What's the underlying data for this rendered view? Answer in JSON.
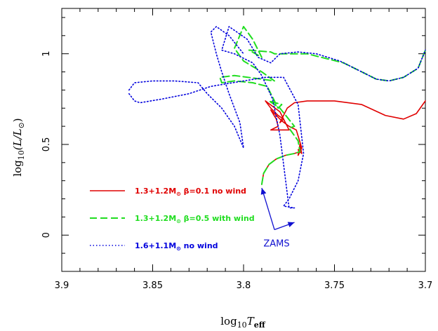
{
  "chart_data": {
    "type": "line",
    "title": "",
    "xlabel": "log₁₀T_eff",
    "ylabel": "log₁₀(L/L⊙)",
    "xlim": [
      3.9,
      3.7
    ],
    "ylim": [
      -0.2,
      1.25
    ],
    "x_inverted": true,
    "x_ticks": [
      3.9,
      3.85,
      3.8,
      3.75,
      3.7
    ],
    "x_tick_labels": [
      "3.9",
      "3.85",
      "3.8",
      "3.75",
      "3.7"
    ],
    "y_ticks": [
      0,
      0.5,
      1
    ],
    "y_tick_labels": [
      "0",
      "0.5",
      "1"
    ],
    "grid": false,
    "legend_position": "lower-left",
    "series": [
      {
        "name": "1.3+1.2M⊙ β=0.1 no wind",
        "color": "#e00000",
        "dash": "solid",
        "points": [
          [
            3.79,
            0.28
          ],
          [
            3.789,
            0.34
          ],
          [
            3.786,
            0.39
          ],
          [
            3.782,
            0.42
          ],
          [
            3.777,
            0.44
          ],
          [
            3.772,
            0.45
          ],
          [
            3.769,
            0.46
          ],
          [
            3.768,
            0.48
          ],
          [
            3.77,
            0.47
          ],
          [
            3.768,
            0.45
          ],
          [
            3.769,
            0.5
          ],
          [
            3.77,
            0.44
          ],
          [
            3.768,
            0.48
          ],
          [
            3.771,
            0.58
          ],
          [
            3.775,
            0.6
          ],
          [
            3.779,
            0.63
          ],
          [
            3.785,
            0.69
          ],
          [
            3.782,
            0.64
          ],
          [
            3.781,
            0.6
          ],
          [
            3.785,
            0.58
          ],
          [
            3.775,
            0.58
          ],
          [
            3.78,
            0.68
          ],
          [
            3.788,
            0.74
          ],
          [
            3.785,
            0.7
          ],
          [
            3.781,
            0.66
          ],
          [
            3.778,
            0.64
          ],
          [
            3.78,
            0.62
          ],
          [
            3.776,
            0.7
          ],
          [
            3.772,
            0.73
          ],
          [
            3.765,
            0.74
          ],
          [
            3.75,
            0.74
          ],
          [
            3.735,
            0.72
          ],
          [
            3.722,
            0.66
          ],
          [
            3.712,
            0.64
          ],
          [
            3.705,
            0.67
          ],
          [
            3.7,
            0.74
          ]
        ]
      },
      {
        "name": "1.3+1.2M⊙ β=0.5 with wind",
        "color": "#20dd20",
        "dash": "dashed",
        "points": [
          [
            3.79,
            0.28
          ],
          [
            3.789,
            0.34
          ],
          [
            3.786,
            0.39
          ],
          [
            3.782,
            0.42
          ],
          [
            3.777,
            0.44
          ],
          [
            3.772,
            0.45
          ],
          [
            3.769,
            0.46
          ],
          [
            3.77,
            0.52
          ],
          [
            3.775,
            0.59
          ],
          [
            3.772,
            0.6
          ],
          [
            3.78,
            0.7
          ],
          [
            3.786,
            0.74
          ],
          [
            3.779,
            0.72
          ],
          [
            3.781,
            0.7
          ],
          [
            3.785,
            0.78
          ],
          [
            3.787,
            0.82
          ],
          [
            3.795,
            0.84
          ],
          [
            3.805,
            0.85
          ],
          [
            3.812,
            0.84
          ],
          [
            3.813,
            0.87
          ],
          [
            3.805,
            0.88
          ],
          [
            3.79,
            0.86
          ],
          [
            3.783,
            0.85
          ],
          [
            3.79,
            0.9
          ],
          [
            3.8,
            0.96
          ],
          [
            3.805,
            1.03
          ],
          [
            3.8,
            1.15
          ],
          [
            3.795,
            1.08
          ],
          [
            3.79,
            0.98
          ],
          [
            3.797,
            1.02
          ],
          [
            3.785,
            1.01
          ],
          [
            3.783,
            1.0
          ],
          [
            3.765,
            1.0
          ],
          [
            3.745,
            0.95
          ],
          [
            3.735,
            0.9
          ],
          [
            3.727,
            0.86
          ],
          [
            3.72,
            0.85
          ],
          [
            3.712,
            0.87
          ],
          [
            3.704,
            0.92
          ],
          [
            3.7,
            1.02
          ]
        ]
      },
      {
        "name": "1.6+1.1M⊙ no wind",
        "color": "#0000dd",
        "dash": "dotted",
        "points": [
          [
            3.863,
            0.78
          ],
          [
            3.86,
            0.74
          ],
          [
            3.857,
            0.73
          ],
          [
            3.845,
            0.75
          ],
          [
            3.83,
            0.78
          ],
          [
            3.818,
            0.82
          ],
          [
            3.812,
            0.83
          ],
          [
            3.8,
            0.85
          ],
          [
            3.788,
            0.87
          ],
          [
            3.778,
            0.87
          ],
          [
            3.77,
            0.72
          ],
          [
            3.767,
            0.45
          ],
          [
            3.77,
            0.3
          ],
          [
            3.775,
            0.2
          ],
          [
            3.778,
            0.16
          ],
          [
            3.772,
            0.15
          ],
          [
            3.775,
            0.15
          ],
          [
            3.78,
            0.55
          ],
          [
            3.784,
            0.75
          ],
          [
            3.79,
            0.88
          ],
          [
            3.795,
            0.95
          ],
          [
            3.805,
            1.0
          ],
          [
            3.812,
            1.02
          ],
          [
            3.808,
            1.15
          ],
          [
            3.798,
            1.08
          ],
          [
            3.792,
            0.98
          ],
          [
            3.785,
            0.95
          ],
          [
            3.78,
            1.0
          ],
          [
            3.77,
            1.01
          ],
          [
            3.76,
            1.0
          ],
          [
            3.747,
            0.96
          ],
          [
            3.735,
            0.9
          ],
          [
            3.727,
            0.86
          ],
          [
            3.72,
            0.85
          ],
          [
            3.712,
            0.87
          ],
          [
            3.704,
            0.92
          ],
          [
            3.7,
            1.02
          ]
        ]
      },
      {
        "name": "",
        "color": "#0000dd",
        "dash": "dotted",
        "points": [
          [
            3.863,
            0.8
          ],
          [
            3.86,
            0.84
          ],
          [
            3.85,
            0.85
          ],
          [
            3.838,
            0.85
          ],
          [
            3.825,
            0.84
          ],
          [
            3.82,
            0.78
          ],
          [
            3.812,
            0.7
          ],
          [
            3.805,
            0.6
          ],
          [
            3.8,
            0.48
          ],
          [
            3.802,
            0.62
          ],
          [
            3.808,
            0.78
          ],
          [
            3.812,
            0.9
          ],
          [
            3.815,
            1.0
          ],
          [
            3.818,
            1.12
          ],
          [
            3.815,
            1.15
          ],
          [
            3.808,
            1.1
          ],
          [
            3.8,
            1.0
          ]
        ]
      }
    ],
    "legend": [
      {
        "label_main": "1.3+1.2M",
        "label_sub": "⊙",
        "label_rest": " β=0.1  no wind",
        "color": "#e00000",
        "dash": "solid"
      },
      {
        "label_main": "1.3+1.2M",
        "label_sub": "⊙",
        "label_rest": " β=0.5 with wind",
        "color": "#20dd20",
        "dash": "dashed"
      },
      {
        "label_main": "1.6+1.1M",
        "label_sub": "⊙",
        "label_rest": "  no wind",
        "color": "#0000dd",
        "dash": "dotted"
      }
    ],
    "annotations": [
      {
        "text": "ZAMS",
        "color": "#1010d0",
        "arrow_targets": [
          [
            3.79,
            0.26
          ],
          [
            3.772,
            0.07
          ]
        ],
        "anchor": [
          3.783,
          0.03
        ]
      }
    ]
  },
  "axis_labels": {
    "x_main": "log",
    "x_sub": "10",
    "x_var": "T",
    "x_var_sub": "eff",
    "y_main": "log",
    "y_sub": "10",
    "y_rest_open": "(L/L",
    "y_rest_sub": "⊙",
    "y_rest_close": ")"
  }
}
